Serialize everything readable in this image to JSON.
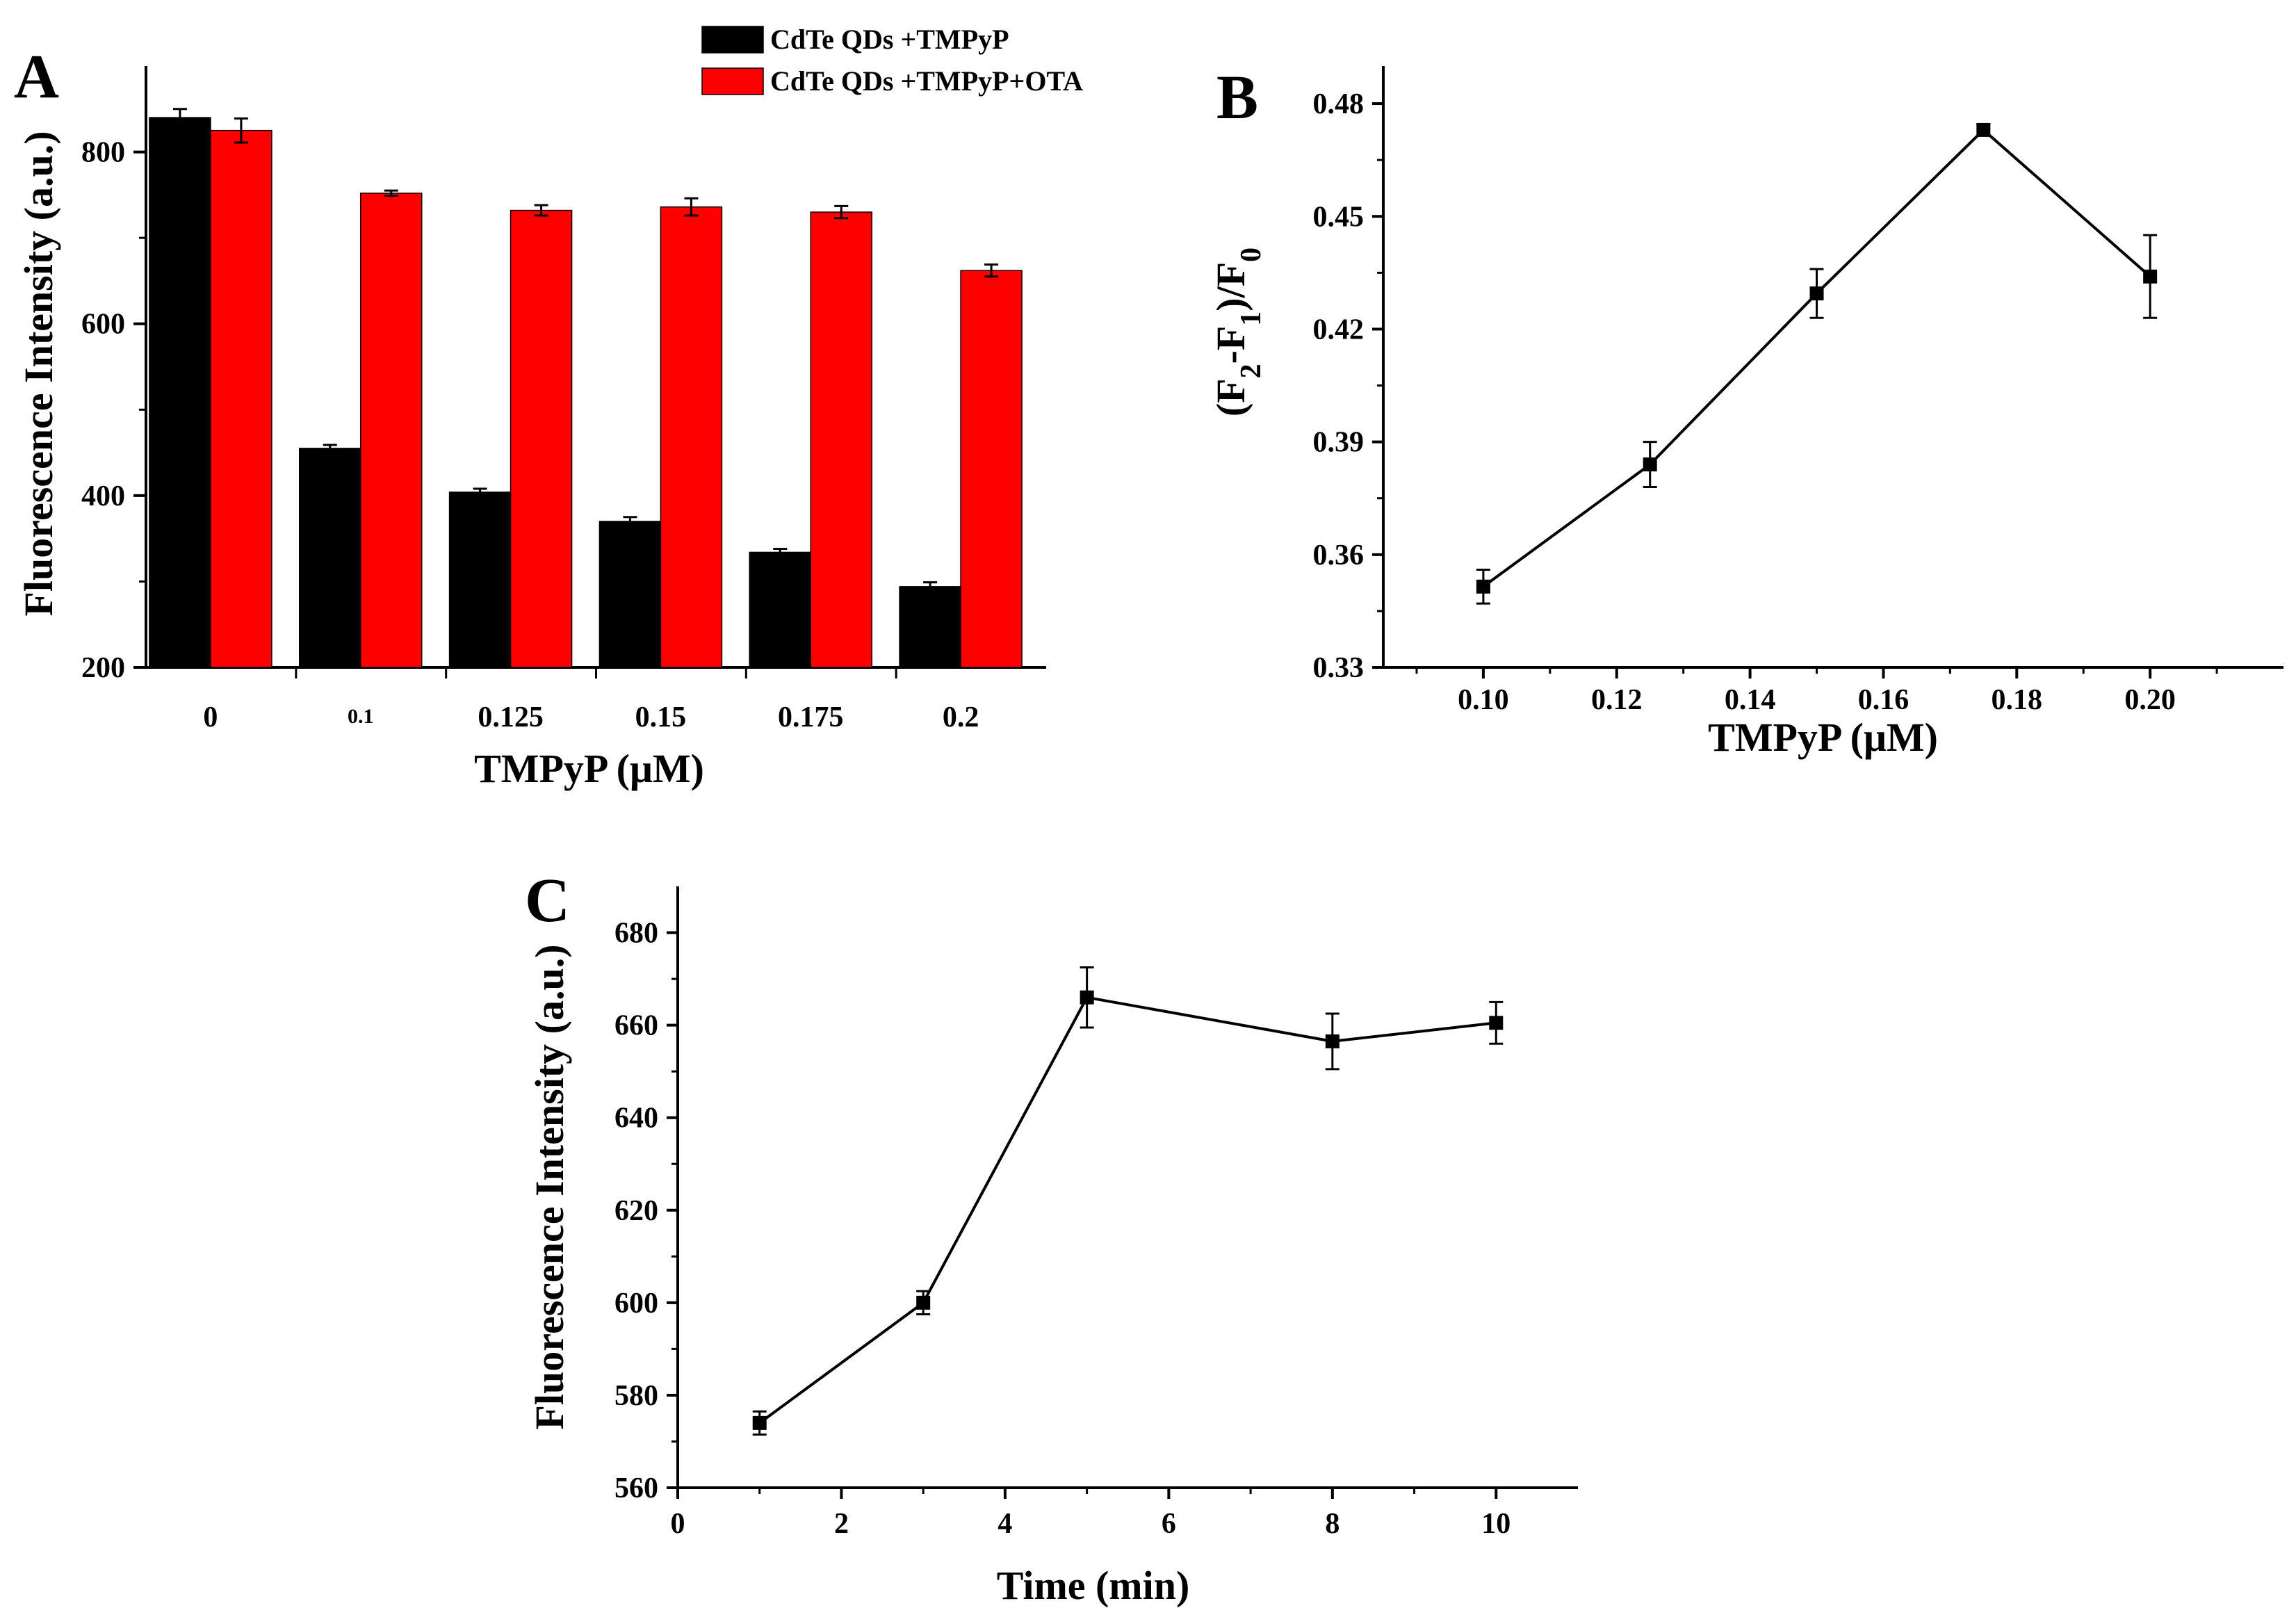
{
  "chart_data": [
    {
      "type": "bar",
      "panel": "A",
      "xlabel": "TMPyP (μM)",
      "ylabel": "Fluorescence Intensity (a.u.)",
      "ylim": [
        200,
        900
      ],
      "yticks": [
        200,
        400,
        600,
        800
      ],
      "categories": [
        "0",
        "0.1",
        "0.125",
        "0.15",
        "0.175",
        "0.2"
      ],
      "legend_position": "top-right",
      "series": [
        {
          "name": "CdTe QDs +TMPyP",
          "color": "#000000",
          "values": [
            840,
            455,
            404,
            370,
            334,
            294
          ],
          "errors": [
            10,
            4,
            4,
            5,
            4,
            5
          ]
        },
        {
          "name": "CdTe QDs +TMPyP+OTA",
          "color": "#ff0000",
          "values": [
            825,
            752,
            732,
            736,
            730,
            662
          ],
          "errors": [
            14,
            3,
            6,
            10,
            7,
            7
          ]
        }
      ]
    },
    {
      "type": "line",
      "panel": "B",
      "xlabel": "TMPyP (μM)",
      "ylabel": "(F2-F1)/F0",
      "xlim": [
        0.085,
        0.22
      ],
      "ylim": [
        0.33,
        0.49
      ],
      "xticks": [
        "0.10",
        "0.12",
        "0.14",
        "0.16",
        "0.18",
        "0.20"
      ],
      "yticks": [
        "0.33",
        "0.36",
        "0.39",
        "0.42",
        "0.45",
        "0.48"
      ],
      "x": [
        0.1,
        0.125,
        0.15,
        0.175,
        0.2
      ],
      "y": [
        0.3515,
        0.384,
        0.4295,
        0.473,
        0.434
      ],
      "errors": [
        0.0045,
        0.006,
        0.0065,
        0.0015,
        0.011
      ]
    },
    {
      "type": "line",
      "panel": "C",
      "xlabel": "Time (min)",
      "ylabel": "Fluorescence Intensity (a.u.)",
      "xlim": [
        0,
        11
      ],
      "ylim": [
        560,
        690
      ],
      "xticks": [
        "0",
        "2",
        "4",
        "6",
        "8",
        "10"
      ],
      "yticks": [
        "560",
        "580",
        "600",
        "620",
        "640",
        "660",
        "680"
      ],
      "x": [
        1,
        3,
        5,
        8,
        10
      ],
      "y": [
        574,
        600,
        666,
        656.5,
        660.5
      ],
      "errors": [
        2.5,
        2.5,
        6.5,
        6,
        4.5
      ]
    }
  ]
}
